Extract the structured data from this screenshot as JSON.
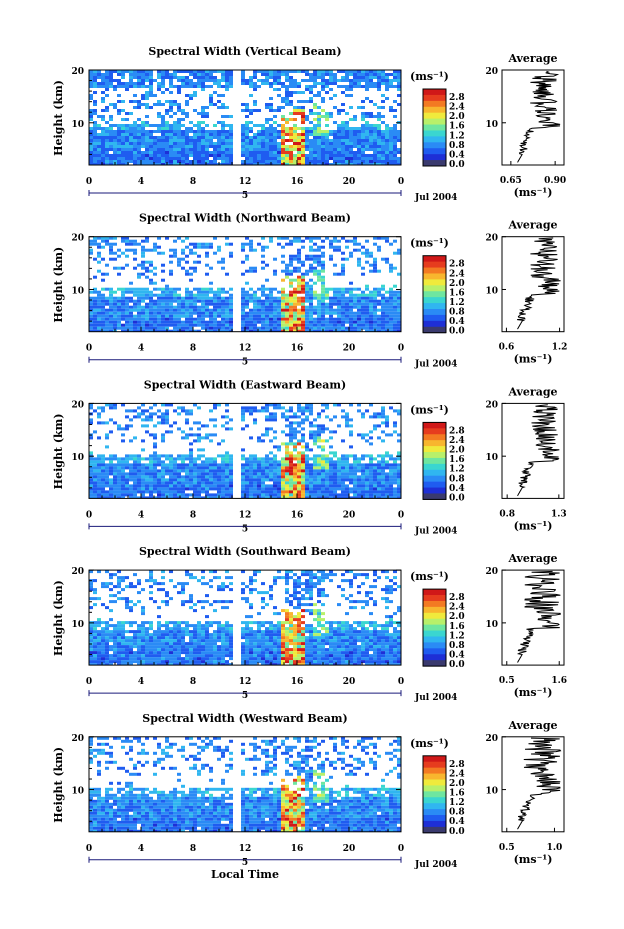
{
  "chart_data": {
    "type": "heatmap",
    "date_label": "Jul 2004",
    "x_tick_labels": [
      "0",
      "4",
      "8",
      "12",
      "16",
      "20",
      "0"
    ],
    "day_marker": "5",
    "xlabel": "Local Time",
    "ylabel": "Height (km)",
    "y_tick_labels": [
      "20",
      "10"
    ],
    "ylim": [
      2,
      20
    ],
    "xlim_hours": [
      0,
      24
    ],
    "colorbar": {
      "unit_label": "(ms⁻¹)",
      "tick_labels": [
        "2.8",
        "2.4",
        "2.0",
        "1.6",
        "1.2",
        "0.8",
        "0.4",
        "0.0"
      ],
      "range": [
        0,
        3.0
      ],
      "colors": [
        "#3a3a6e",
        "#1e2fd6",
        "#1f5cf0",
        "#2a8bf5",
        "#30b6f0",
        "#3ad6d0",
        "#6ee6a0",
        "#b8f06a",
        "#f0ea3c",
        "#f8b62e",
        "#f37a22",
        "#e63c1e",
        "#d01818"
      ]
    },
    "average_profile": {
      "title": "Average",
      "xlabel": "(ms⁻¹)",
      "y_tick_labels": [
        "20",
        "10"
      ]
    },
    "panels": [
      {
        "title": "Spectral Width (Vertical Beam)",
        "avg_x_ticks": [
          "0.65",
          "0.90"
        ],
        "avg_xlim": [
          0.6,
          0.95
        ]
      },
      {
        "title": "Spectral Width (Northward Beam)",
        "avg_x_ticks": [
          "0.6",
          "1.2"
        ],
        "avg_xlim": [
          0.55,
          1.25
        ]
      },
      {
        "title": "Spectral Width (Eastward Beam)",
        "avg_x_ticks": [
          "0.8",
          "1.3"
        ],
        "avg_xlim": [
          0.75,
          1.35
        ]
      },
      {
        "title": "Spectral Width (Southward Beam)",
        "avg_x_ticks": [
          "0.5",
          "1.6"
        ],
        "avg_xlim": [
          0.4,
          1.7
        ]
      },
      {
        "title": "Spectral Width (Westward Beam)",
        "avg_x_ticks": [
          "0.5",
          "1.0"
        ],
        "avg_xlim": [
          0.45,
          1.1
        ]
      }
    ]
  }
}
